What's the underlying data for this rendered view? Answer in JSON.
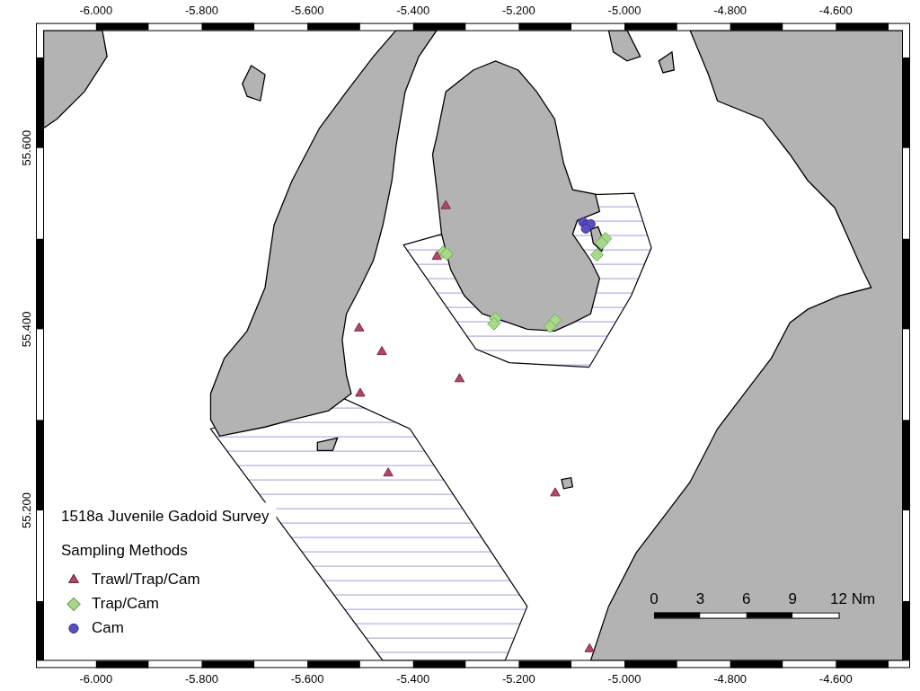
{
  "chart_data": {
    "type": "scatter",
    "title": "1518a Juvenile Gadoid Survey",
    "legend_title": "Sampling Methods",
    "legend": "lower left",
    "grid": false,
    "xlim": [
      -6.1,
      -4.473
    ],
    "ylim": [
      55.034,
      55.73
    ],
    "xticks": [
      {
        "value": -6.0,
        "label": "-6.000"
      },
      {
        "value": -5.8,
        "label": "-5.800"
      },
      {
        "value": -5.6,
        "label": "-5.600"
      },
      {
        "value": -5.4,
        "label": "-5.400"
      },
      {
        "value": -5.2,
        "label": "-5.200"
      },
      {
        "value": -5.0,
        "label": "-5.000"
      },
      {
        "value": -4.8,
        "label": "-4.800"
      },
      {
        "value": -4.6,
        "label": "-4.600"
      }
    ],
    "yticks": [
      {
        "value": 55.2,
        "label": "55.200"
      },
      {
        "value": 55.4,
        "label": "55.400"
      },
      {
        "value": 55.6,
        "label": "55.600"
      }
    ],
    "series": [
      {
        "name": "Trawl/Trap/Cam",
        "color": "#b0476a",
        "marker": "triangle",
        "values": [
          [
            -5.338,
            55.536
          ],
          [
            -5.355,
            55.48
          ],
          [
            -5.502,
            55.401
          ],
          [
            -5.459,
            55.375
          ],
          [
            -5.312,
            55.345
          ],
          [
            -5.5,
            55.329
          ],
          [
            -5.447,
            55.241
          ],
          [
            -5.131,
            55.219
          ],
          [
            -5.066,
            55.047
          ]
        ]
      },
      {
        "name": "Trap/Cam",
        "color": "#a8d88a",
        "marker": "diamond",
        "values": [
          [
            -5.343,
            55.485
          ],
          [
            -5.336,
            55.483
          ],
          [
            -5.244,
            55.412
          ],
          [
            -5.247,
            55.406
          ],
          [
            -5.131,
            55.41
          ],
          [
            -5.141,
            55.403
          ],
          [
            -5.036,
            55.5
          ],
          [
            -5.043,
            55.495
          ],
          [
            -5.052,
            55.482
          ]
        ]
      },
      {
        "name": "Cam",
        "color": "#5b4ec0",
        "marker": "circle",
        "values": [
          [
            -5.078,
            55.518
          ],
          [
            -5.071,
            55.515
          ],
          [
            -5.064,
            55.516
          ],
          [
            -5.073,
            55.511
          ]
        ]
      }
    ],
    "zones": [
      [
        [
          -5.418,
          55.493
        ],
        [
          -5.084,
          55.548
        ],
        [
          -4.982,
          55.55
        ],
        [
          -4.949,
          55.49
        ],
        [
          -4.987,
          55.437
        ],
        [
          -5.067,
          55.358
        ],
        [
          -5.218,
          55.363
        ],
        [
          -5.281,
          55.378
        ]
      ],
      [
        [
          -5.783,
          55.29
        ],
        [
          -5.552,
          55.329
        ],
        [
          -5.406,
          55.29
        ],
        [
          -5.184,
          55.094
        ],
        [
          -5.226,
          55.034
        ],
        [
          -5.457,
          55.034
        ]
      ]
    ],
    "land": [
      [
        [
          -5.355,
          55.73
        ],
        [
          -5.389,
          55.701
        ],
        [
          -5.415,
          55.662
        ],
        [
          -5.432,
          55.603
        ],
        [
          -5.44,
          55.564
        ],
        [
          -5.457,
          55.515
        ],
        [
          -5.475,
          55.476
        ],
        [
          -5.5,
          55.446
        ],
        [
          -5.526,
          55.417
        ],
        [
          -5.534,
          55.388
        ],
        [
          -5.526,
          55.349
        ],
        [
          -5.517,
          55.329
        ],
        [
          -5.56,
          55.31
        ],
        [
          -5.629,
          55.3
        ],
        [
          -5.68,
          55.292
        ],
        [
          -5.766,
          55.282
        ],
        [
          -5.783,
          55.3
        ],
        [
          -5.783,
          55.329
        ],
        [
          -5.757,
          55.368
        ],
        [
          -5.714,
          55.398
        ],
        [
          -5.68,
          55.446
        ],
        [
          -5.663,
          55.515
        ],
        [
          -5.629,
          55.564
        ],
        [
          -5.577,
          55.622
        ],
        [
          -5.526,
          55.662
        ],
        [
          -5.475,
          55.701
        ],
        [
          -5.432,
          55.73
        ]
      ],
      [
        [
          -5.355,
          55.613
        ],
        [
          -5.338,
          55.662
        ],
        [
          -5.286,
          55.686
        ],
        [
          -5.244,
          55.696
        ],
        [
          -5.201,
          55.686
        ],
        [
          -5.166,
          55.662
        ],
        [
          -5.132,
          55.632
        ],
        [
          -5.115,
          55.583
        ],
        [
          -5.098,
          55.554
        ],
        [
          -5.055,
          55.549
        ],
        [
          -5.047,
          55.53
        ],
        [
          -5.089,
          55.52
        ],
        [
          -5.098,
          55.505
        ],
        [
          -5.064,
          55.476
        ],
        [
          -5.047,
          55.456
        ],
        [
          -5.064,
          55.417
        ],
        [
          -5.098,
          55.407
        ],
        [
          -5.132,
          55.398
        ],
        [
          -5.184,
          55.4
        ],
        [
          -5.218,
          55.407
        ],
        [
          -5.269,
          55.417
        ],
        [
          -5.303,
          55.437
        ],
        [
          -5.329,
          55.466
        ],
        [
          -5.346,
          55.505
        ],
        [
          -5.355,
          55.554
        ],
        [
          -5.363,
          55.593
        ]
      ],
      [
        [
          -5.064,
          55.51
        ],
        [
          -5.05,
          55.513
        ],
        [
          -5.038,
          55.495
        ],
        [
          -5.043,
          55.486
        ],
        [
          -5.059,
          55.495
        ]
      ],
      [
        [
          -4.876,
          55.73
        ],
        [
          -4.841,
          55.681
        ],
        [
          -4.824,
          55.652
        ],
        [
          -4.739,
          55.632
        ],
        [
          -4.687,
          55.593
        ],
        [
          -4.653,
          55.564
        ],
        [
          -4.602,
          55.534
        ],
        [
          -4.55,
          55.466
        ],
        [
          -4.533,
          55.446
        ],
        [
          -4.593,
          55.437
        ],
        [
          -4.653,
          55.422
        ],
        [
          -4.687,
          55.407
        ],
        [
          -4.722,
          55.368
        ],
        [
          -4.773,
          55.329
        ],
        [
          -4.824,
          55.29
        ],
        [
          -4.876,
          55.231
        ],
        [
          -4.927,
          55.192
        ],
        [
          -4.978,
          55.153
        ],
        [
          -5.03,
          55.094
        ],
        [
          -5.064,
          55.034
        ],
        [
          -4.473,
          55.034
        ],
        [
          -4.473,
          55.73
        ]
      ],
      [
        [
          -6.099,
          55.73
        ],
        [
          -5.988,
          55.73
        ],
        [
          -5.979,
          55.701
        ],
        [
          -6.022,
          55.662
        ],
        [
          -6.074,
          55.632
        ],
        [
          -6.099,
          55.622
        ]
      ],
      [
        [
          -5.706,
          55.691
        ],
        [
          -5.68,
          55.681
        ],
        [
          -5.689,
          55.652
        ],
        [
          -5.714,
          55.657
        ],
        [
          -5.723,
          55.671
        ]
      ],
      [
        [
          -5.03,
          55.73
        ],
        [
          -4.995,
          55.73
        ],
        [
          -4.97,
          55.701
        ],
        [
          -4.995,
          55.696
        ],
        [
          -5.021,
          55.706
        ]
      ],
      [
        [
          -4.935,
          55.696
        ],
        [
          -4.91,
          55.706
        ],
        [
          -4.906,
          55.686
        ],
        [
          -4.927,
          55.683
        ]
      ],
      [
        [
          -5.581,
          55.275
        ],
        [
          -5.543,
          55.28
        ],
        [
          -5.552,
          55.266
        ],
        [
          -5.581,
          55.266
        ]
      ],
      [
        [
          -5.119,
          55.234
        ],
        [
          -5.101,
          55.236
        ],
        [
          -5.098,
          55.226
        ],
        [
          -5.115,
          55.224
        ]
      ]
    ],
    "scale_bar": {
      "ticks": [
        0,
        3,
        6,
        9,
        12
      ],
      "unit": "Nm"
    }
  }
}
